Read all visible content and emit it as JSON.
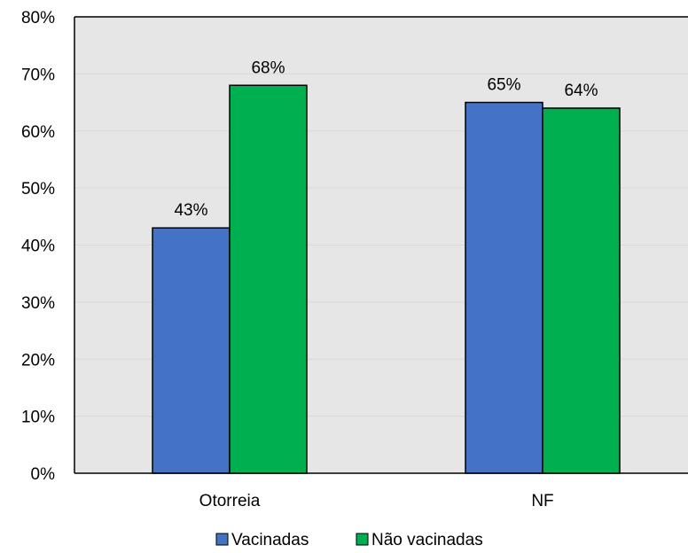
{
  "chart_data": {
    "type": "bar",
    "categories": [
      "Otorreia",
      "NF"
    ],
    "series": [
      {
        "name": "Vacinadas",
        "values": [
          43,
          65
        ],
        "labels": [
          "43%",
          "65%"
        ],
        "color": "#4472C4"
      },
      {
        "name": "Não vacinadas",
        "values": [
          68,
          64
        ],
        "labels": [
          "68%",
          "64%"
        ],
        "color": "#00B050"
      }
    ],
    "y_ticks": [
      "0%",
      "10%",
      "20%",
      "30%",
      "40%",
      "50%",
      "60%",
      "70%",
      "80%"
    ],
    "ylim": [
      0,
      80
    ],
    "grid": true,
    "legend_position": "bottom",
    "plot_background": "#E7E6E6",
    "gridline_color": "#D9D9D9"
  }
}
